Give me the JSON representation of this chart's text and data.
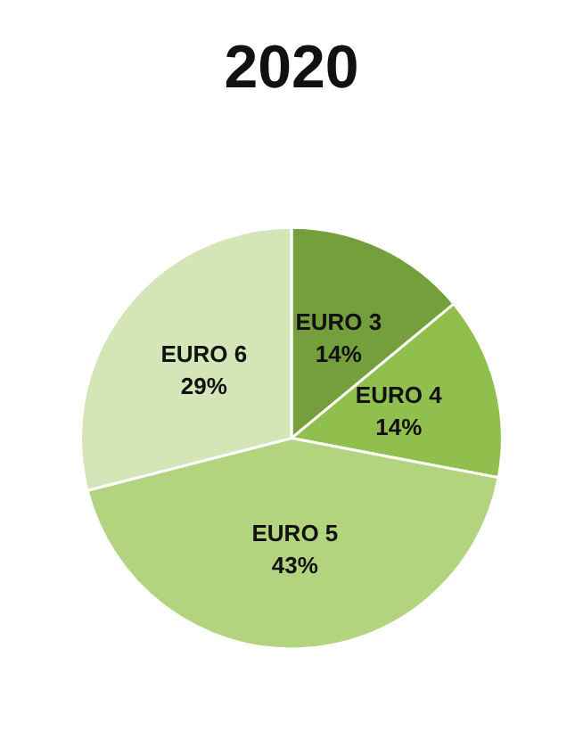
{
  "chart_data": {
    "type": "pie",
    "title": "2020",
    "categories": [
      "EURO 3",
      "EURO 4",
      "EURO 5",
      "EURO 6"
    ],
    "values": [
      14,
      14,
      43,
      29
    ],
    "colors": [
      "#759f3c",
      "#91bf4e",
      "#b3d47e",
      "#d4e5b7"
    ],
    "value_labels": [
      "14%",
      "14%",
      "43%",
      "29%"
    ],
    "legend": false
  }
}
